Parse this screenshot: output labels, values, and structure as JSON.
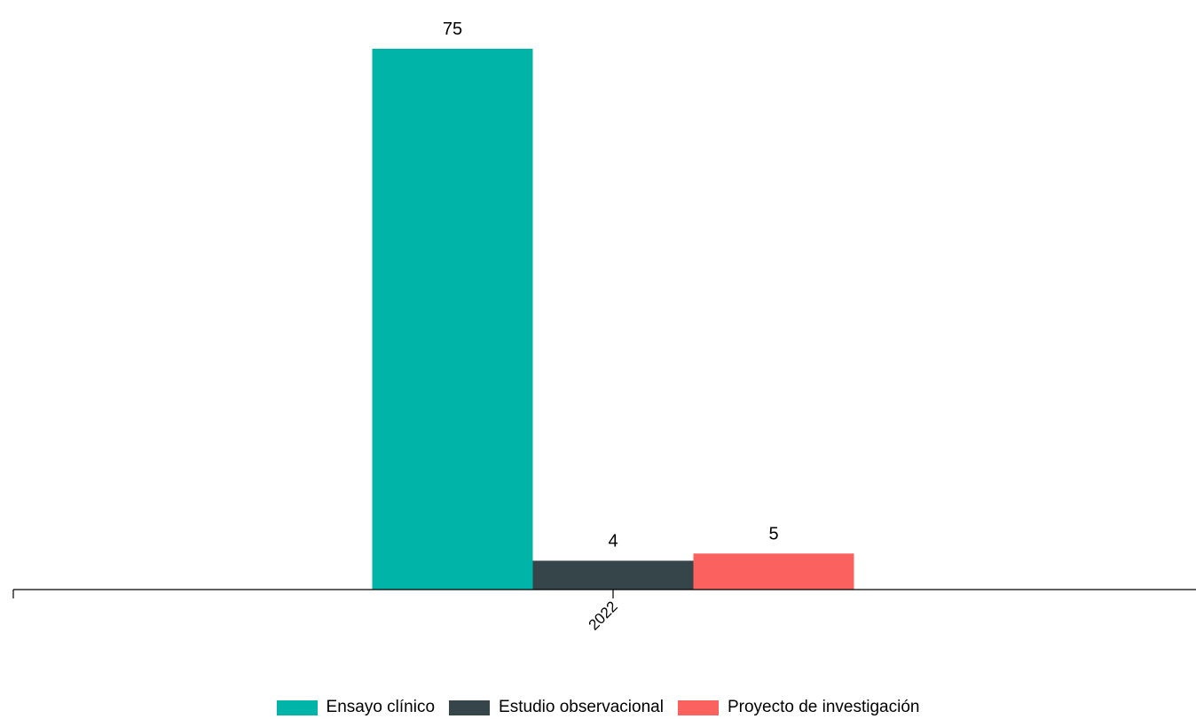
{
  "chart_data": {
    "type": "bar",
    "categories": [
      "2022"
    ],
    "series": [
      {
        "name": "Ensayo clínico",
        "values": [
          75
        ],
        "color": "#00b5a8"
      },
      {
        "name": "Estudio observacional",
        "values": [
          4
        ],
        "color": "#354549"
      },
      {
        "name": "Proyecto de investigación",
        "values": [
          5
        ],
        "color": "#fb615f"
      }
    ],
    "title": "",
    "xlabel": "",
    "ylabel": "",
    "ylim": [
      0,
      75
    ],
    "grid": false,
    "legend_position": "bottom"
  }
}
